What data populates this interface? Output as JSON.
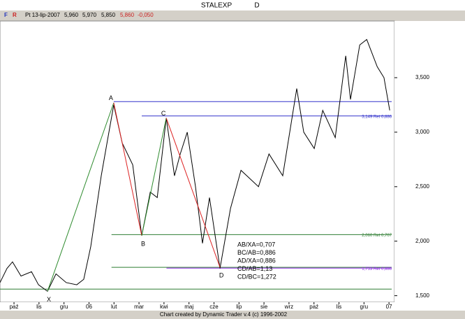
{
  "chart_data": {
    "type": "line",
    "title": "STALEXP",
    "period": "D",
    "info": {
      "flags": [
        "F",
        "R"
      ],
      "date": "Pt 13-lip-2007",
      "open": "5,960",
      "high": "5,970",
      "low": "5,850",
      "close": "5,860",
      "change": "-0,050"
    },
    "footer": "Chart created by Dynamic Trader v.4  (c) 1996-2002",
    "x": [
      -0.56,
      -0.28,
      -0.06,
      0.28,
      0.7,
      0.98,
      1.34,
      1.68,
      2.09,
      2.51,
      2.79,
      3.07,
      3.49,
      3.72,
      3.99,
      4.33,
      4.75,
      5.11,
      5.45,
      5.73,
      6.09,
      6.42,
      6.65,
      6.93,
      7.26,
      7.54,
      7.82,
      8.24,
      8.66,
      9.08,
      9.78,
      10.2,
      10.75,
      11.31,
      11.59,
      12.01,
      12.35,
      12.85,
      13.27,
      13.46,
      13.83,
      14.11,
      14.53,
      14.8,
      15.03
    ],
    "values": [
      1.62,
      1.75,
      1.81,
      1.68,
      1.72,
      1.6,
      1.54,
      1.7,
      1.62,
      1.6,
      1.65,
      1.95,
      2.6,
      2.9,
      3.25,
      2.9,
      2.7,
      2.05,
      2.45,
      2.4,
      3.13,
      2.6,
      2.8,
      3.0,
      2.5,
      1.98,
      2.4,
      1.75,
      2.3,
      2.65,
      2.5,
      2.8,
      2.6,
      3.4,
      3.0,
      2.85,
      3.2,
      2.95,
      3.7,
      3.3,
      3.8,
      3.85,
      3.6,
      3.5,
      3.2
    ],
    "color": "#000000",
    "pattern": {
      "labels": [
        "X",
        "A",
        "B",
        "C",
        "D"
      ],
      "x": [
        1.34,
        3.99,
        5.11,
        6.09,
        8.24
      ],
      "values": [
        1.54,
        3.27,
        2.05,
        3.13,
        1.76
      ],
      "up_color": "#2e8b2e",
      "down_color": "#dd2222"
    },
    "levels": [
      {
        "value": 3.28,
        "from": 3.99,
        "color": "#3333cc"
      },
      {
        "value": 3.149,
        "from": 5.11,
        "color": "#3333cc",
        "label": "3,149 Ret 0,886"
      },
      {
        "value": 2.06,
        "from": 3.9,
        "color": "#2e7d32",
        "label": "2,060 Ret 0,707"
      },
      {
        "value": 1.76,
        "from": 3.9,
        "color": "#2e7d32"
      },
      {
        "value": 1.753,
        "from": 6.1,
        "color": "#8a2be2",
        "label": "1,753 Ret 0,886"
      },
      {
        "value": 1.56,
        "from": -0.56,
        "color": "#2e7d32"
      }
    ],
    "annotations": [
      "AB/XA=0,707",
      "BC/AB=0,886",
      "AD/XA=0,886",
      "CD/AB=1,13",
      "CD/BC=1,272"
    ],
    "xlim": [
      -0.56,
      15.22
    ],
    "xticks": [
      {
        "value": 0,
        "label": "paź"
      },
      {
        "value": 1,
        "label": "lis"
      },
      {
        "value": 2,
        "label": "gru"
      },
      {
        "value": 3,
        "label": "06"
      },
      {
        "value": 4,
        "label": "lut"
      },
      {
        "value": 5,
        "label": "mar"
      },
      {
        "value": 6,
        "label": "kwi"
      },
      {
        "value": 7,
        "label": "maj"
      },
      {
        "value": 8,
        "label": "cze"
      },
      {
        "value": 9,
        "label": "lip"
      },
      {
        "value": 10,
        "label": "sie"
      },
      {
        "value": 11,
        "label": "wrz"
      },
      {
        "value": 12,
        "label": "paź"
      },
      {
        "value": 13,
        "label": "lis"
      },
      {
        "value": 14,
        "label": "gru"
      },
      {
        "value": 15,
        "label": "07"
      }
    ],
    "ylim": [
      1.44,
      4.02
    ],
    "yticks": [
      {
        "value": 1.5,
        "label": "1,500"
      },
      {
        "value": 2,
        "label": "2,000"
      },
      {
        "value": 2.5,
        "label": "2,500"
      },
      {
        "value": 3,
        "label": "3,000"
      },
      {
        "value": 3.5,
        "label": "3,500"
      }
    ]
  }
}
